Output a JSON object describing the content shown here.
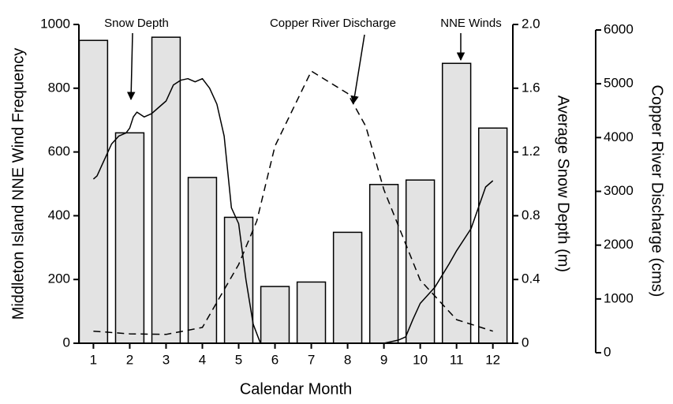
{
  "chart_data": {
    "type": "combo",
    "xlabel": "Calendar Month",
    "ylabel": "Middleton Island NNE Wind Frequency",
    "y2label": "Average Snow Depth (m)",
    "y3label": "Copper River Discharge (cms)",
    "annotations": [
      "Snow Depth",
      "Copper River Discharge",
      "NNE Winds"
    ],
    "xlim": [
      0.6,
      12.55
    ],
    "xticks": [
      1,
      2,
      3,
      4,
      5,
      6,
      7,
      8,
      9,
      10,
      11,
      12
    ],
    "ylim": [
      0,
      1000
    ],
    "yticks": [
      0,
      200,
      400,
      600,
      800,
      1000
    ],
    "y2lim": [
      0,
      2
    ],
    "y2ticks": [
      0,
      0.4,
      0.8,
      1.2,
      1.6,
      {
        "value": 2,
        "label": "2.0"
      }
    ],
    "y3lim": [
      0,
      6000
    ],
    "y3ticks": [
      0,
      1000,
      2000,
      3000,
      4000,
      5000,
      6000
    ],
    "series": [
      {
        "type": "bar",
        "axis": "y",
        "color": "#e3e3e3",
        "x": [
          1,
          2,
          3,
          4,
          5,
          6,
          7,
          8,
          9,
          10,
          11,
          12
        ],
        "values": [
          950,
          660,
          960,
          520,
          395,
          178,
          192,
          348,
          498,
          512,
          878,
          675
        ]
      },
      {
        "type": "line",
        "axis": "y2",
        "color": "#000000",
        "line_style": "solid",
        "x": [
          1.0,
          1.1,
          1.3,
          1.5,
          1.7,
          1.9,
          2.0,
          2.1,
          2.2,
          2.4,
          2.6,
          2.8,
          3.0,
          3.2,
          3.4,
          3.6,
          3.8,
          4.0,
          4.2,
          4.4,
          4.6,
          4.8,
          5.0,
          5.2,
          5.4,
          5.6,
          6.0,
          7.0,
          8.0,
          9.0,
          9.4,
          9.6,
          9.8,
          10.0,
          10.4,
          10.8,
          11.0,
          11.4,
          11.8,
          12.0
        ],
        "values": [
          1.03,
          1.05,
          1.15,
          1.25,
          1.3,
          1.32,
          1.35,
          1.42,
          1.45,
          1.42,
          1.44,
          1.48,
          1.52,
          1.62,
          1.65,
          1.66,
          1.64,
          1.66,
          1.6,
          1.5,
          1.3,
          0.85,
          0.75,
          0.4,
          0.12,
          0,
          0,
          0,
          0,
          0,
          0.02,
          0.04,
          0.15,
          0.25,
          0.35,
          0.5,
          0.58,
          0.72,
          0.98,
          1.02
        ]
      },
      {
        "type": "line",
        "axis": "y3",
        "color": "#000000",
        "line_style": "dashed",
        "x": [
          1,
          2,
          3,
          4,
          5,
          5.5,
          6,
          7,
          8,
          8.5,
          9,
          10,
          11,
          12
        ],
        "values": [
          400,
          350,
          340,
          470,
          1640,
          2450,
          3840,
          5235,
          4820,
          4210,
          3030,
          1350,
          615,
          400
        ]
      }
    ]
  }
}
